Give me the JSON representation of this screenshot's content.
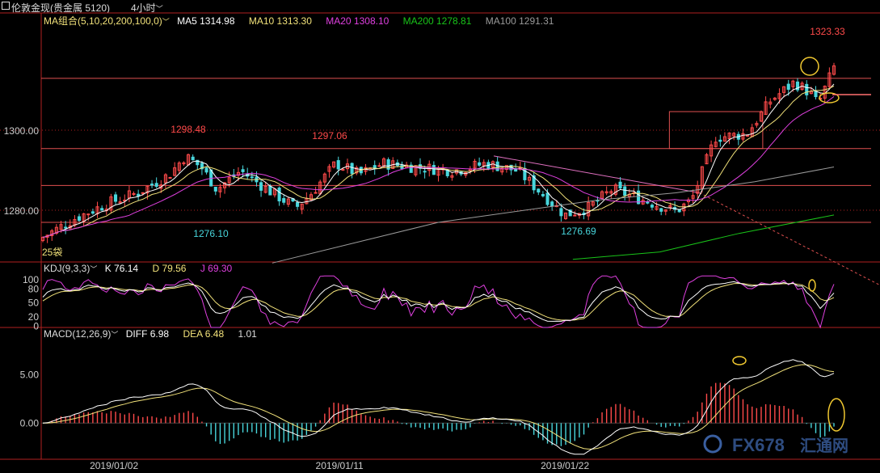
{
  "window": {
    "title": "伦敦金现(贵金属 5120)",
    "period": "4小时",
    "chevron_glyph": "﹀"
  },
  "colors": {
    "up": "#ff4a4a",
    "down": "#48d6dc",
    "ma5": "#ffffff",
    "ma10": "#f2e27a",
    "ma20": "#e040e0",
    "ma200": "#19c419",
    "ma100": "#9a9a9a",
    "grid": "#b02020",
    "level": "#e05050",
    "annotation": "#f0c830",
    "text": "#cccccc"
  },
  "legend": {
    "ma_group": "MA组合(5,10,20,200,100,0)",
    "ma5": "MA5 1314.98",
    "ma10": "MA10 1313.30",
    "ma20": "MA20 1308.10",
    "ma200": "MA200 1278.81",
    "ma100": "MA100 1291.31"
  },
  "kdj_legend": {
    "name": "KDJ(9,3,3)",
    "k": "K 76.14",
    "d": "D 79.56",
    "j": "J 69.30"
  },
  "macd_legend": {
    "name": "MACD(12,26,9)",
    "diff": "DIFF 6.98",
    "dea": "DEA 6.48",
    "macd": "1.01"
  },
  "annotations": {
    "high": "1323.33",
    "h1": "1298.48",
    "h2": "1297.06",
    "l1": "1276.10",
    "l2": "1276.69",
    "small_label": "25袋"
  },
  "watermark": {
    "text": "FX678",
    "cn": "汇通网"
  },
  "chart_data": {
    "type": "candlestick",
    "price": {
      "yticks": [
        "1300.00",
        "1280.00"
      ],
      "ylim": [
        1266.5,
        1330
      ],
      "horizontal_levels": [
        1316,
        1297,
        1287,
        1277
      ],
      "trendline": {
        "from": [
          0.57,
          1295
        ],
        "to": [
          1.0,
          1271
        ]
      },
      "box": {
        "x_range": [
          0.792,
          0.91
        ],
        "y_range": [
          1297,
          1303
        ]
      }
    },
    "kdj": {
      "yticks": [
        "100",
        "80",
        "50",
        "20",
        "0"
      ],
      "ylim": [
        -3,
        110
      ],
      "last": {
        "k": 76.14,
        "d": 79.56,
        "j": 69.3
      }
    },
    "macd": {
      "yticks": [
        "5.00",
        "0.00"
      ],
      "ylim": [
        -3.5,
        8.5
      ],
      "last": {
        "diff": 6.98,
        "dea": 6.48,
        "macd": 1.01
      }
    },
    "x_labels": [
      {
        "label": "2019/01/02",
        "pos": 0.09
      },
      {
        "label": "2019/01/11",
        "pos": 0.375
      },
      {
        "label": "2019/01/22",
        "pos": 0.66
      }
    ],
    "close_keypoints": [
      [
        0,
        1273
      ],
      [
        0.04,
        1278
      ],
      [
        0.08,
        1282
      ],
      [
        0.12,
        1285
      ],
      [
        0.16,
        1290
      ],
      [
        0.18,
        1295
      ],
      [
        0.2,
        1292
      ],
      [
        0.22,
        1286
      ],
      [
        0.25,
        1291
      ],
      [
        0.29,
        1285
      ],
      [
        0.32,
        1281
      ],
      [
        0.34,
        1285
      ],
      [
        0.37,
        1293
      ],
      [
        0.4,
        1290
      ],
      [
        0.43,
        1293
      ],
      [
        0.47,
        1292
      ],
      [
        0.52,
        1291
      ],
      [
        0.56,
        1293
      ],
      [
        0.6,
        1291
      ],
      [
        0.63,
        1285
      ],
      [
        0.66,
        1279
      ],
      [
        0.69,
        1281
      ],
      [
        0.72,
        1286
      ],
      [
        0.76,
        1283
      ],
      [
        0.8,
        1280
      ],
      [
        0.82,
        1283
      ],
      [
        0.85,
        1300
      ],
      [
        0.89,
        1301
      ],
      [
        0.92,
        1310
      ],
      [
        0.95,
        1315
      ],
      [
        0.97,
        1312
      ],
      [
        0.98,
        1309
      ],
      [
        1.0,
        1319
      ]
    ],
    "ma100_keypoints": [
      [
        0.29,
        1266
      ],
      [
        0.5,
        1277
      ],
      [
        0.7,
        1283
      ],
      [
        0.8,
        1285
      ],
      [
        0.9,
        1288
      ],
      [
        1.0,
        1292
      ]
    ],
    "ma200_keypoints": [
      [
        0.67,
        1267
      ],
      [
        0.78,
        1269
      ],
      [
        0.88,
        1274
      ],
      [
        1.0,
        1279
      ]
    ]
  }
}
